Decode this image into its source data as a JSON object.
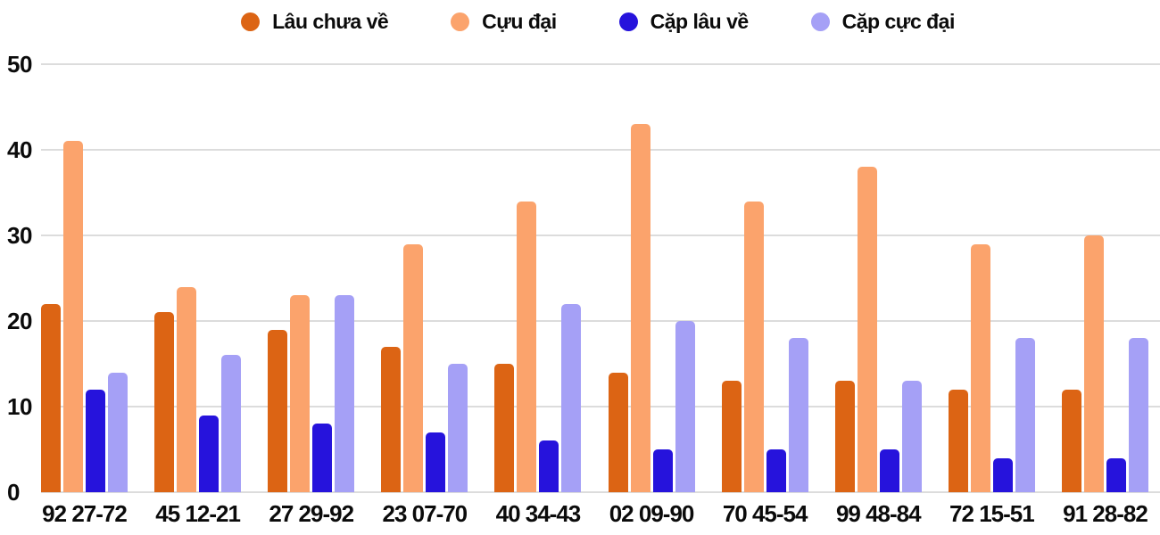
{
  "chart_data": {
    "type": "bar",
    "title": "",
    "xlabel": "",
    "ylabel": "",
    "categories": [
      "92 27-72",
      "45 12-21",
      "27 29-92",
      "23 07-70",
      "40 34-43",
      "02 09-90",
      "70 45-54",
      "99 48-84",
      "72 15-51",
      "91 28-82"
    ],
    "series": [
      {
        "name": "Lâu chưa về",
        "color": "#dc6414",
        "values": [
          22,
          21,
          19,
          17,
          15,
          14,
          13,
          13,
          12,
          12
        ]
      },
      {
        "name": "Cựu đại",
        "color": "#fba36c",
        "values": [
          41,
          24,
          23,
          29,
          34,
          43,
          34,
          38,
          29,
          30
        ]
      },
      {
        "name": "Cặp lâu về",
        "color": "#2613dc",
        "values": [
          12,
          9,
          8,
          7,
          6,
          5,
          5,
          5,
          4,
          4
        ]
      },
      {
        "name": "Cặp cực đại",
        "color": "#a5a0f6",
        "values": [
          14,
          16,
          23,
          15,
          22,
          20,
          18,
          13,
          18,
          18
        ]
      }
    ],
    "y_ticks": [
      0,
      10,
      20,
      30,
      40,
      50
    ],
    "ylim": [
      0,
      50
    ],
    "grid": true,
    "legend_position": "top"
  },
  "colors": {
    "grid": "#dcdcdc",
    "text": "#0b0b0b",
    "background": "#ffffff"
  }
}
